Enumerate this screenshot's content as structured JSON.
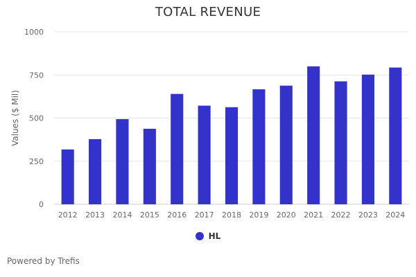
{
  "title": "TOTAL REVENUE",
  "credits": "Powered by Trefis",
  "colors": {
    "bar": "#3333CC",
    "grid": "#e6e6e6",
    "axis": "#cccccc"
  },
  "chart_data": {
    "type": "bar",
    "title": "TOTAL REVENUE",
    "xlabel": "",
    "ylabel": "Values ($ Mil)",
    "ylim": [
      0,
      1000
    ],
    "yticks": [
      0,
      250,
      500,
      750,
      1000
    ],
    "grid": true,
    "legend_position": "bottom-center",
    "categories": [
      "2012",
      "2013",
      "2014",
      "2015",
      "2016",
      "2017",
      "2018",
      "2019",
      "2020",
      "2021",
      "2022",
      "2023",
      "2024"
    ],
    "series": [
      {
        "name": "HL",
        "color": "#3333CC",
        "values": [
          318,
          378,
          494,
          438,
          640,
          572,
          563,
          667,
          688,
          800,
          713,
          752,
          793
        ]
      }
    ]
  }
}
